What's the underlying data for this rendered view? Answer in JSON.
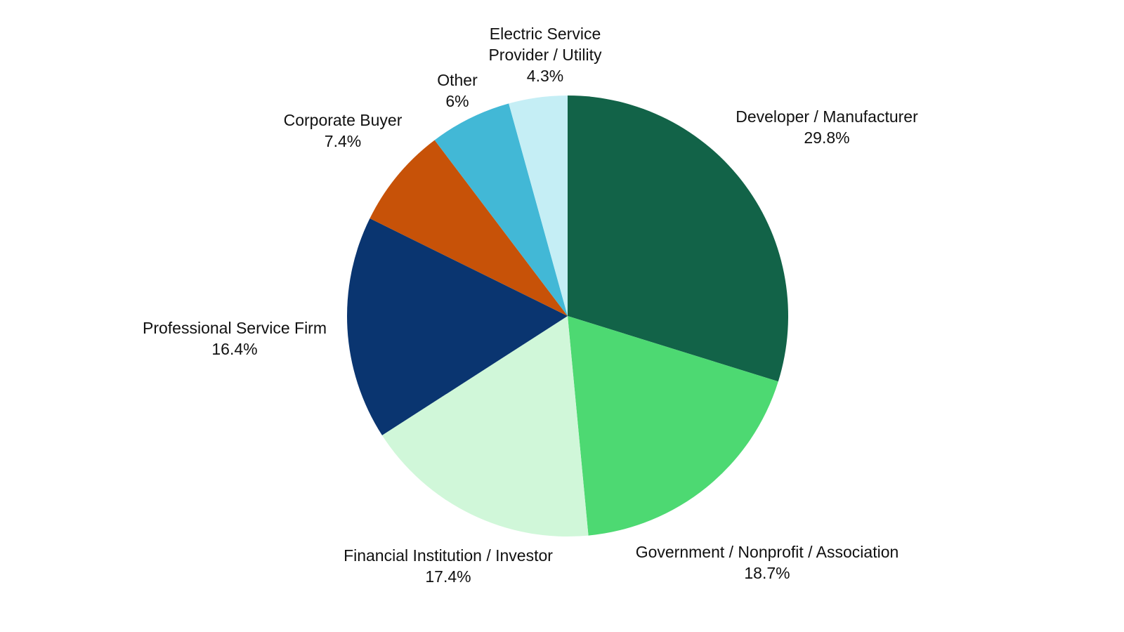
{
  "chart_data": {
    "type": "pie",
    "title": "",
    "start_angle_deg": 0,
    "direction": "clockwise",
    "slices": [
      {
        "label_lines": [
          "Developer / Manufacturer"
        ],
        "value": 29.8,
        "value_label": "29.8%",
        "color": "#126348"
      },
      {
        "label_lines": [
          "Government / Nonprofit / Association"
        ],
        "value": 18.7,
        "value_label": "18.7%",
        "color": "#4dd972"
      },
      {
        "label_lines": [
          "Financial Institution / Investor"
        ],
        "value": 17.4,
        "value_label": "17.4%",
        "color": "#d0f7d9"
      },
      {
        "label_lines": [
          "Professional Service Firm"
        ],
        "value": 16.4,
        "value_label": "16.4%",
        "color": "#0a3570"
      },
      {
        "label_lines": [
          "Corporate Buyer"
        ],
        "value": 7.4,
        "value_label": "7.4%",
        "color": "#c75208"
      },
      {
        "label_lines": [
          "Other"
        ],
        "value": 6,
        "value_label": "6%",
        "color": "#42b8d6"
      },
      {
        "label_lines": [
          "Electric Service",
          "Provider / Utility"
        ],
        "value": 4.3,
        "value_label": "4.3%",
        "color": "#c5eef5"
      }
    ]
  }
}
